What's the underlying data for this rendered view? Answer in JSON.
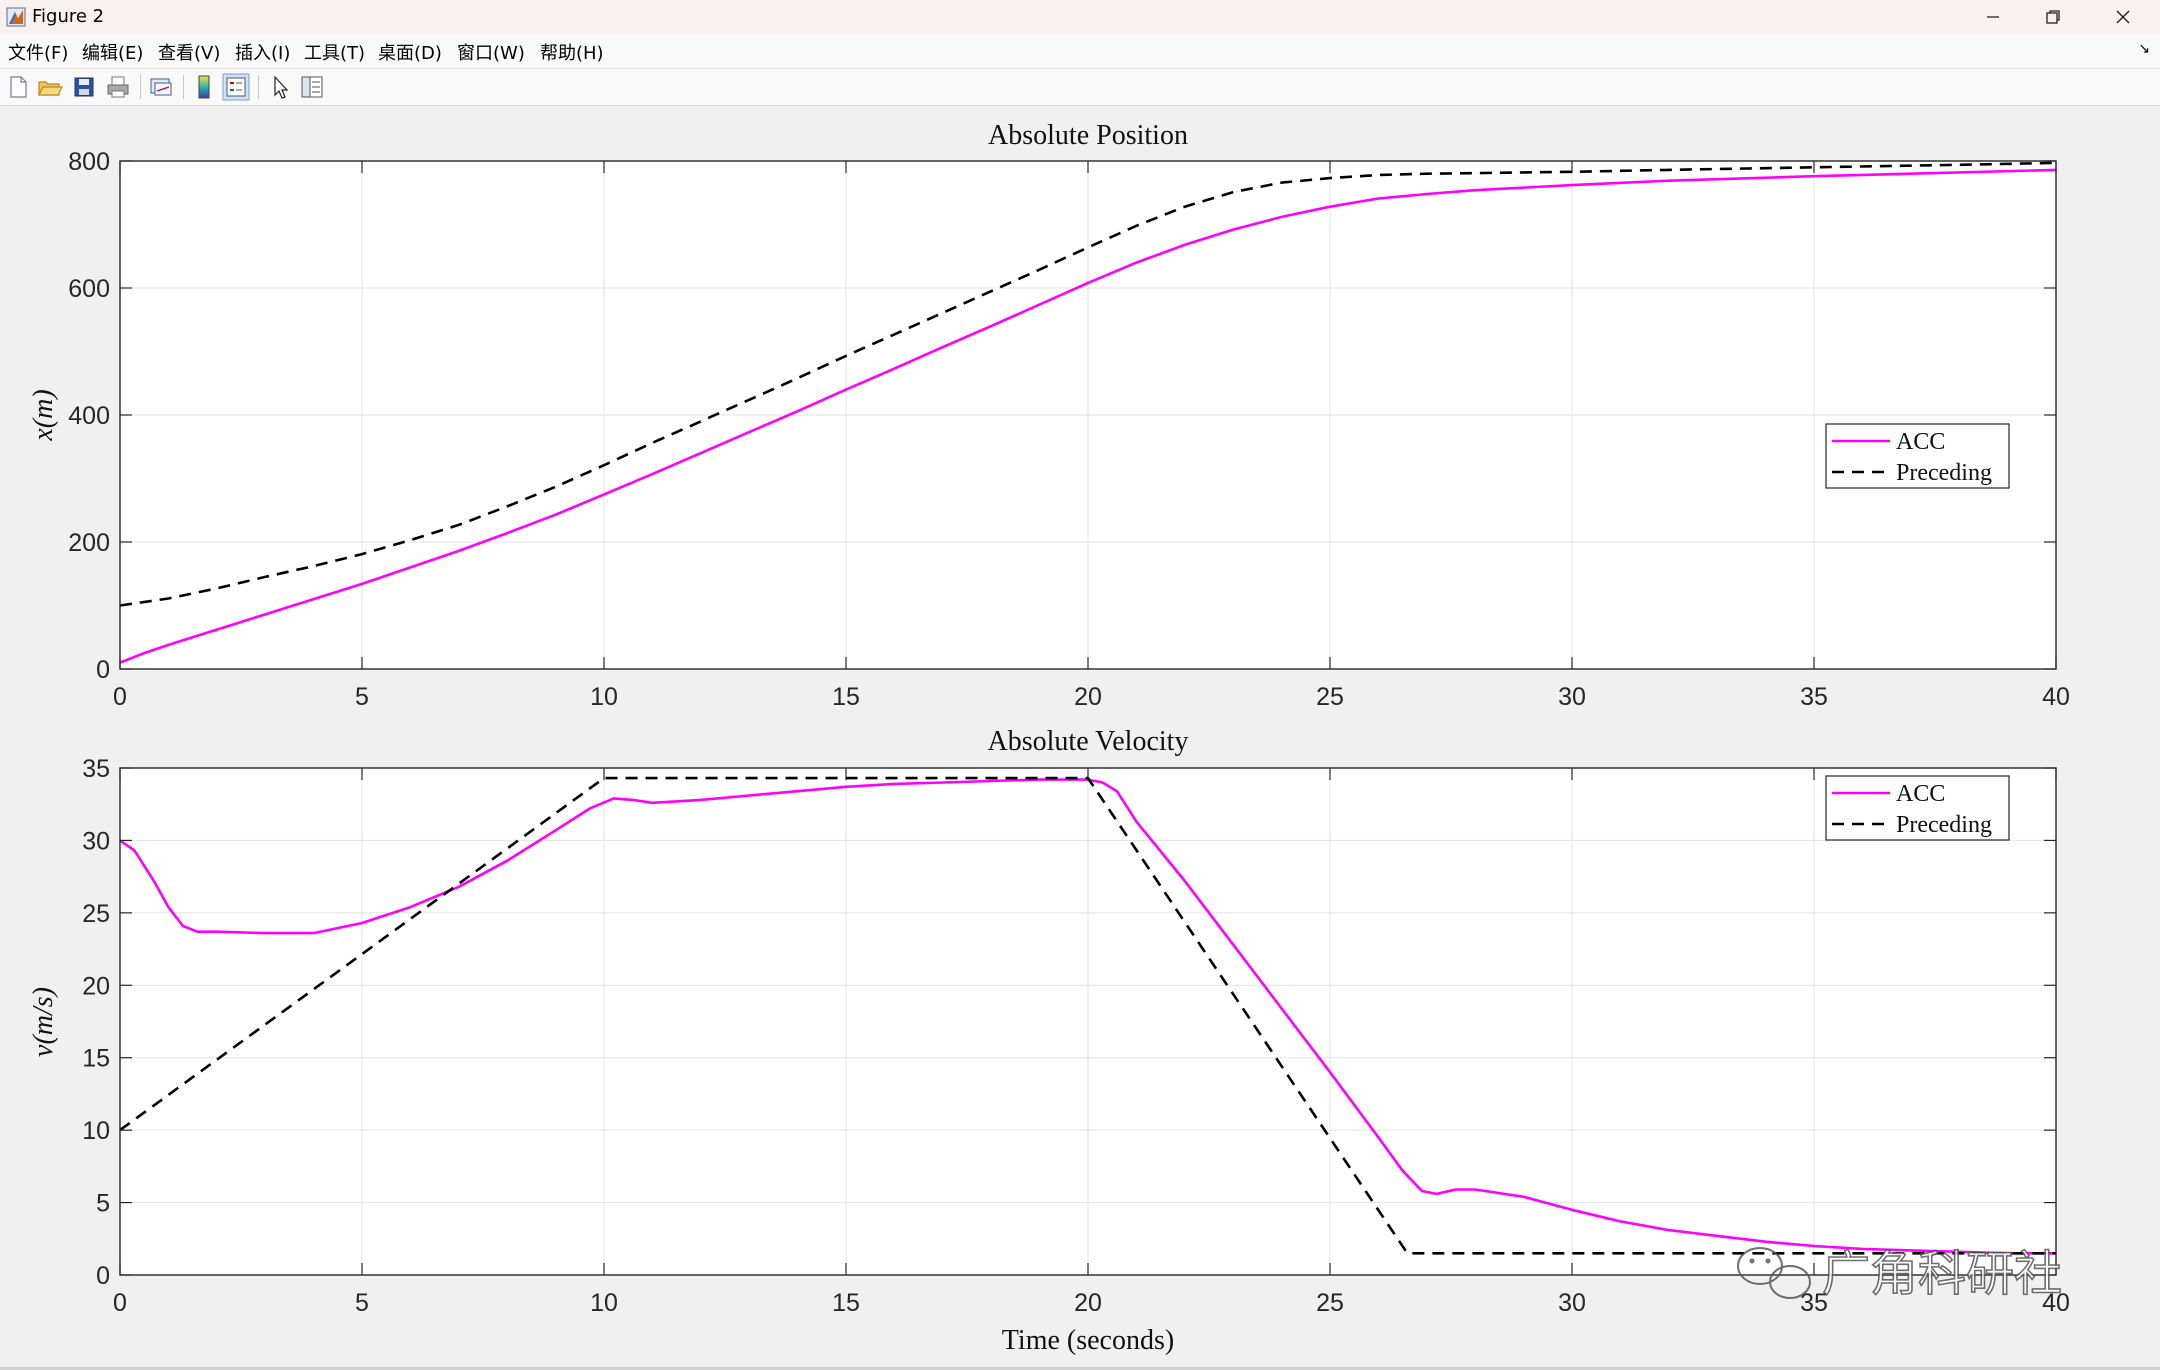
{
  "window": {
    "title": "Figure 2",
    "icon": "matlab-figure-icon",
    "controls": [
      "minimize-icon",
      "restore-icon",
      "close-icon"
    ]
  },
  "menu": [
    {
      "label": "文件(F)"
    },
    {
      "label": "编辑(E)"
    },
    {
      "label": "查看(V)"
    },
    {
      "label": "插入(I)"
    },
    {
      "label": "工具(T)"
    },
    {
      "label": "桌面(D)"
    },
    {
      "label": "窗口(W)"
    },
    {
      "label": "帮助(H)"
    }
  ],
  "toolbar": [
    "new-figure-icon",
    "open-file-icon",
    "save-icon",
    "print-icon",
    "link-plot-icon",
    "colorbar-icon",
    "legend-icon",
    "edit-plot-arrow-icon",
    "property-inspector-icon"
  ],
  "colors": {
    "acc": "#ff00ff",
    "preceding": "#000000",
    "grid": "#e3e3e3"
  },
  "watermark": {
    "text": "广角科研社",
    "icon": "wechat-icon"
  },
  "chart_data": [
    {
      "type": "line",
      "title": "Absolute Position",
      "xlabel": "",
      "ylabel": "x(m)",
      "xlim": [
        0,
        40
      ],
      "ylim": [
        0,
        800
      ],
      "xticks": [
        "0",
        "5",
        "10",
        "15",
        "20",
        "25",
        "30",
        "35",
        "40"
      ],
      "yticks": [
        "0",
        "200",
        "400",
        "600",
        "800"
      ],
      "grid": true,
      "legend": "right",
      "series": [
        {
          "name": "ACC",
          "color": "#ff00ff",
          "style": "solid",
          "x": [
            0,
            0.5,
            1,
            2,
            3,
            4,
            5,
            6,
            7,
            8,
            9,
            10,
            11,
            12,
            13,
            14,
            15,
            16,
            17,
            18,
            19,
            20,
            21,
            22,
            23,
            24,
            25,
            26,
            27,
            28,
            30,
            32,
            35,
            38,
            40
          ],
          "y": [
            10,
            25,
            38,
            62,
            86,
            110,
            134,
            160,
            186,
            214,
            243,
            275,
            307,
            340,
            373,
            406,
            440,
            473,
            507,
            540,
            574,
            608,
            640,
            668,
            692,
            712,
            728,
            741,
            748,
            754,
            762,
            769,
            776,
            782,
            786
          ]
        },
        {
          "name": "Preceding",
          "color": "#000000",
          "style": "dashed",
          "x": [
            0,
            1,
            2,
            3,
            4,
            5,
            6,
            7,
            8,
            9,
            10,
            11,
            12,
            13,
            14,
            15,
            16,
            17,
            18,
            19,
            20,
            21,
            22,
            23,
            24,
            25,
            26,
            27,
            28,
            30,
            32,
            35,
            38,
            40
          ],
          "y": [
            100,
            111,
            127,
            145,
            162,
            181,
            203,
            227,
            256,
            287,
            321,
            356,
            390,
            424,
            458,
            493,
            527,
            561,
            595,
            629,
            664,
            698,
            728,
            751,
            766,
            773,
            778,
            780,
            781,
            783,
            786,
            790,
            794,
            797
          ]
        }
      ]
    },
    {
      "type": "line",
      "title": "Absolute Velocity",
      "xlabel": "Time (seconds)",
      "ylabel": "v(m/s)",
      "xlim": [
        0,
        40
      ],
      "ylim": [
        0,
        35
      ],
      "xticks": [
        "0",
        "5",
        "10",
        "15",
        "20",
        "25",
        "30",
        "35",
        "40"
      ],
      "yticks": [
        "0",
        "5",
        "10",
        "15",
        "20",
        "25",
        "30",
        "35"
      ],
      "grid": true,
      "legend": "top-right",
      "series": [
        {
          "name": "ACC",
          "color": "#ff00ff",
          "style": "solid",
          "x": [
            0,
            0.3,
            0.7,
            1,
            1.3,
            1.6,
            2,
            3,
            4,
            5,
            6,
            7,
            8,
            9,
            9.7,
            10.2,
            10.6,
            11,
            12,
            13,
            14,
            15,
            16,
            17,
            18,
            19,
            19.5,
            20,
            20.3,
            20.6,
            21,
            22,
            23,
            24,
            25,
            26,
            26.5,
            26.9,
            27.2,
            27.6,
            28,
            29,
            30,
            31,
            32,
            33,
            34,
            35,
            36,
            37,
            38,
            39,
            40
          ],
          "y": [
            30,
            29.3,
            27.2,
            25.4,
            24.1,
            23.7,
            23.7,
            23.6,
            23.6,
            24.3,
            25.4,
            26.8,
            28.6,
            30.7,
            32.2,
            32.9,
            32.8,
            32.6,
            32.8,
            33.1,
            33.4,
            33.7,
            33.9,
            34.0,
            34.1,
            34.2,
            34.2,
            34.2,
            34.0,
            33.4,
            31.3,
            27.2,
            22.8,
            18.4,
            14.0,
            9.5,
            7.2,
            5.8,
            5.6,
            5.9,
            5.9,
            5.4,
            4.5,
            3.7,
            3.1,
            2.7,
            2.3,
            2.0,
            1.8,
            1.7,
            1.6,
            1.5,
            1.5
          ]
        },
        {
          "name": "Preceding",
          "color": "#000000",
          "style": "dashed",
          "x": [
            0,
            10,
            20,
            26.6,
            40
          ],
          "y": [
            10,
            34.3,
            34.3,
            1.5,
            1.5
          ]
        }
      ]
    }
  ]
}
